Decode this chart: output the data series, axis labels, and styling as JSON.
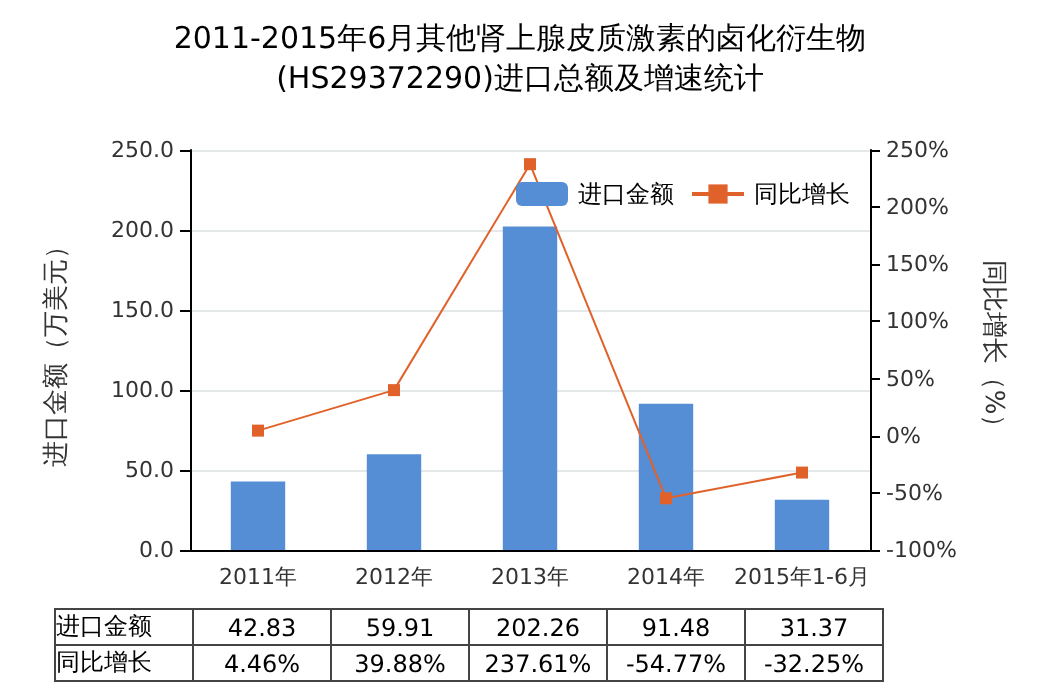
{
  "chart_data": {
    "type": "bar",
    "title": "2011-2015年6月其他肾上腺皮质激素的卤化衍生物\n(HS29372290)进口总额及增速统计",
    "ylabel": "进口金额（万美元）",
    "y2label": "同比增长（%）",
    "categories": [
      "2011年",
      "2012年",
      "2013年",
      "2014年",
      "2015年1-6月"
    ],
    "series": [
      {
        "name": "进口金额",
        "color": "#558ed5",
        "values": [
          42.83,
          59.91,
          202.26,
          91.48,
          31.37
        ],
        "value_labels": [
          "42.83",
          "59.91",
          "202.26",
          "91.48",
          "31.37"
        ]
      },
      {
        "name": "同比增长",
        "type": "line",
        "axis": "y2",
        "color": "#e0622a",
        "values": [
          4.46,
          39.88,
          237.61,
          -54.77,
          -32.25
        ],
        "value_labels": [
          "4.46%",
          "39.88%",
          "237.61%",
          "-54.77%",
          "-32.25%"
        ]
      }
    ],
    "ylim": [
      0,
      250
    ],
    "yticks": [
      {
        "value": 0,
        "label": "0.0"
      },
      {
        "value": 50,
        "label": "50.0"
      },
      {
        "value": 100,
        "label": "100.0"
      },
      {
        "value": 150,
        "label": "150.0"
      },
      {
        "value": 200,
        "label": "200.0"
      },
      {
        "value": 250,
        "label": "250.0"
      }
    ],
    "y2lim": [
      -100,
      250
    ],
    "y2ticks": [
      {
        "value": -100,
        "label": "-100%"
      },
      {
        "value": -50,
        "label": "-50%"
      },
      {
        "value": 0,
        "label": "0%"
      },
      {
        "value": 50,
        "label": "50%"
      },
      {
        "value": 100,
        "label": "100%"
      },
      {
        "value": 150,
        "label": "150%"
      },
      {
        "value": 200,
        "label": "200%"
      },
      {
        "value": 250,
        "label": "250%"
      }
    ],
    "grid": "y",
    "legend": "top right",
    "marker": "square",
    "line_style": "solid"
  }
}
